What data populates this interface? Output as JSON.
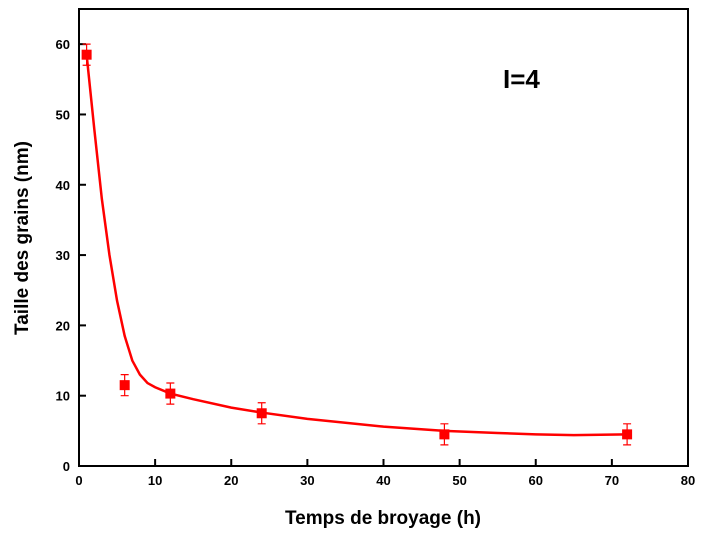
{
  "chart_data": {
    "type": "scatter",
    "x_label": "Temps de broyage (h)",
    "y_label": "Taille des grains (nm)",
    "annotation": "I=4",
    "xlim": [
      0,
      80
    ],
    "xticks": [
      0,
      10,
      20,
      30,
      40,
      50,
      60,
      70,
      80
    ],
    "ylim": [
      0,
      65
    ],
    "yticks": [
      0,
      10,
      20,
      30,
      40,
      50,
      60
    ],
    "color": "#ff0000",
    "x": [
      1,
      6,
      12,
      24,
      48,
      72
    ],
    "values": [
      58.5,
      11.5,
      10.3,
      7.5,
      4.5,
      4.5
    ],
    "errors": [
      1.5,
      1.5,
      1.5,
      1.5,
      1.5,
      1.5
    ],
    "fit": {
      "x": [
        1,
        2,
        3,
        4,
        5,
        6,
        7,
        8,
        9,
        10,
        12,
        15,
        20,
        24,
        30,
        40,
        48,
        55,
        60,
        65,
        72
      ],
      "values": [
        58.5,
        48,
        38,
        30,
        23.5,
        18.5,
        15,
        13,
        11.8,
        11.2,
        10.3,
        9.5,
        8.3,
        7.6,
        6.7,
        5.6,
        5,
        4.7,
        4.5,
        4.4,
        4.5
      ]
    }
  }
}
